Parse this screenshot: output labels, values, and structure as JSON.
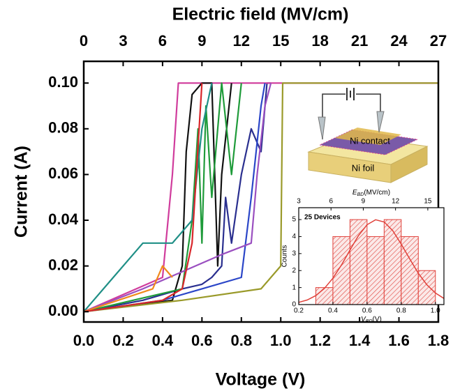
{
  "chart_data": [
    {
      "type": "line",
      "x_label": "Voltage (V)",
      "y_label": "Current (A)",
      "x2_label": "Electric field (MV/cm)",
      "xlim": [
        0,
        1.8
      ],
      "xticks": [
        {
          "value": 0,
          "label": "0.0"
        },
        0.2,
        0.4,
        0.6,
        0.8,
        {
          "value": 1,
          "label": "1.0"
        },
        1.2,
        1.4,
        1.6,
        1.8
      ],
      "ylim": [
        -0.0045,
        0.1095
      ],
      "yticks": [
        {
          "value": 0,
          "label": "0.00"
        },
        0.02,
        0.04,
        0.06,
        0.08,
        {
          "value": 0.1,
          "label": "0.10"
        }
      ],
      "x2lim": [
        0,
        27
      ],
      "x2ticks": [
        0,
        3,
        6,
        9,
        12,
        15,
        18,
        21,
        24,
        27
      ],
      "series": [
        {
          "color": "#2a2f8f",
          "x": [
            0,
            0.3,
            0.5,
            0.6,
            0.65,
            0.7,
            0.72,
            0.75,
            0.8,
            0.85,
            0.9,
            0.93,
            0.95
          ],
          "values": [
            0,
            0.005,
            0.01,
            0.012,
            0.015,
            0.02,
            0.05,
            0.03,
            0.06,
            0.08,
            0.07,
            0.1,
            0.1
          ]
        },
        {
          "color": "#d03c9c",
          "x": [
            0,
            0.4,
            0.45,
            0.48,
            0.5,
            1.8
          ],
          "values": [
            0,
            0.015,
            0.06,
            0.1,
            0.1,
            0.1
          ]
        },
        {
          "color": "#111111",
          "x": [
            0,
            0.45,
            0.5,
            0.52,
            0.55,
            0.6,
            0.65,
            0.68,
            0.7,
            0.75
          ],
          "values": [
            0,
            0.005,
            0.02,
            0.07,
            0.095,
            0.1,
            0.1,
            0.02,
            0.06,
            0.1
          ]
        },
        {
          "color": "#1f9b3a",
          "x": [
            0,
            0.5,
            0.55,
            0.58,
            0.6,
            0.62,
            0.65,
            0.7,
            0.75,
            0.8
          ],
          "values": [
            0,
            0.01,
            0.04,
            0.08,
            0.03,
            0.09,
            0.05,
            0.1,
            0.06,
            0.1
          ]
        },
        {
          "color": "#1f8f86",
          "x": [
            0,
            0.15,
            0.3,
            0.45,
            0.55,
            0.6,
            0.65
          ],
          "values": [
            0,
            0.015,
            0.03,
            0.03,
            0.04,
            0.08,
            0.1
          ]
        },
        {
          "color": "#9a9a2a",
          "x": [
            0,
            0.5,
            0.9,
            0.95,
            1.0,
            1.01,
            1.02,
            1.8
          ],
          "values": [
            0,
            0.005,
            0.01,
            0.015,
            0.02,
            0.1,
            0.1,
            0.1
          ]
        },
        {
          "color": "#2b46c8",
          "x": [
            0,
            0.4,
            0.6,
            0.8,
            0.85,
            0.9,
            0.92
          ],
          "values": [
            0,
            0.005,
            0.01,
            0.015,
            0.05,
            0.09,
            0.1
          ]
        },
        {
          "color": "#9a4fc0",
          "x": [
            0,
            0.3,
            0.7,
            0.85,
            0.88,
            0.92,
            0.95
          ],
          "values": [
            0,
            0.01,
            0.025,
            0.03,
            0.06,
            0.09,
            0.1
          ]
        },
        {
          "color": "#f08a1c",
          "x": [
            0,
            0.35,
            0.4,
            0.45
          ],
          "values": [
            0,
            0.01,
            0.02,
            0.015
          ]
        },
        {
          "color": "#d8262a",
          "x": [
            0,
            0.4,
            0.5,
            0.55,
            0.6
          ],
          "values": [
            0,
            0.005,
            0.01,
            0.03,
            0.1
          ]
        }
      ]
    },
    {
      "type": "histogram",
      "annotation": "25 Devices",
      "y_label": "Counts",
      "x_label": {
        "symbol": "V",
        "subscript": "BD",
        "unit": "(V)"
      },
      "x2_label": {
        "symbol": "E",
        "subscript": "BD",
        "unit": "(MV/cm)"
      },
      "color": "#e0413a",
      "bins": [
        0.3,
        0.4,
        0.5,
        0.6,
        0.7,
        0.8,
        0.9,
        1.0
      ],
      "values": [
        1,
        4,
        5,
        4,
        5,
        4,
        2
      ],
      "xlim": [
        0.2,
        1.05
      ],
      "xticks": [
        0.2,
        0.4,
        0.6,
        0.8,
        {
          "value": 1,
          "label": "1.0"
        }
      ],
      "ylim": [
        0,
        5.7
      ],
      "yticks": [
        0,
        1,
        2,
        3,
        4,
        5
      ],
      "x2lim": [
        3,
        16.5
      ],
      "x2ticks": [
        3,
        6,
        9,
        12,
        15
      ],
      "fit": {
        "x": [
          0.2,
          0.25,
          0.3,
          0.35,
          0.4,
          0.45,
          0.5,
          0.55,
          0.6,
          0.65,
          0.7,
          0.75,
          0.8,
          0.85,
          0.9,
          0.95,
          1.0,
          1.05
        ],
        "values": [
          0.13,
          0.27,
          0.53,
          0.95,
          1.55,
          2.33,
          3.21,
          4.06,
          4.7,
          4.99,
          4.86,
          4.35,
          3.56,
          2.68,
          1.84,
          1.17,
          0.68,
          0.36
        ]
      }
    }
  ],
  "schematic": {
    "labels": [
      "Ni contact",
      "Ni foil"
    ]
  }
}
